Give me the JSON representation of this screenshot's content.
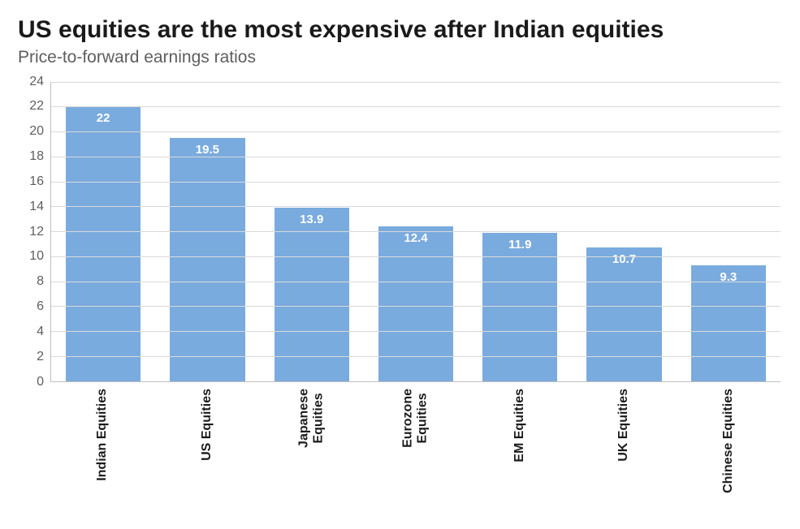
{
  "chart": {
    "type": "bar",
    "title": "US equities are the most expensive after Indian equities",
    "subtitle": "Price-to-forward earnings ratios",
    "title_fontsize": 30,
    "title_color": "#1a1a1a",
    "subtitle_fontsize": 21,
    "subtitle_color": "#5e5e5e",
    "background_color": "#ffffff",
    "grid_color": "#d9d9d9",
    "axis_color": "#bfbfbf",
    "bar_color": "#7aabde",
    "bar_value_color": "#ffffff",
    "bar_value_fontweight": 700,
    "bar_value_fontsize": 15,
    "category_label_fontsize": 16,
    "category_label_fontweight": 700,
    "category_label_rotation": -90,
    "ylim": [
      0,
      24
    ],
    "ytick_step": 2,
    "yticks": [
      0,
      2,
      4,
      6,
      8,
      10,
      12,
      14,
      16,
      18,
      20,
      22,
      24
    ],
    "bar_width_ratio": 0.72,
    "categories": [
      "Indian Equities",
      "US Equities",
      "Japanese\nEquities",
      "Eurozone\nEquities",
      "EM Equities",
      "UK Equities",
      "Chinese Equities"
    ],
    "values": [
      22,
      19.5,
      13.9,
      12.4,
      11.9,
      10.7,
      9.3
    ],
    "value_labels": [
      "22",
      "19.5",
      "13.9",
      "12.4",
      "11.9",
      "10.7",
      "9.3"
    ]
  }
}
